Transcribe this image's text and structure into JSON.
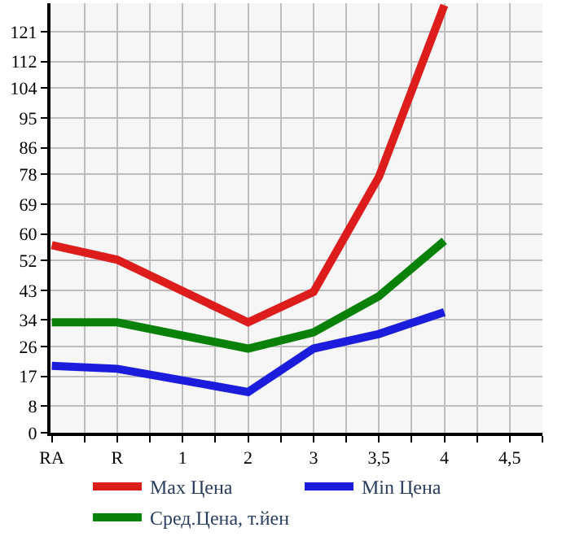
{
  "chart_data": {
    "type": "line",
    "categories": [
      "RA",
      "R",
      "1",
      "2",
      "3",
      "3,5",
      "4",
      "4,5"
    ],
    "series": [
      {
        "name": "Max Цена",
        "color": "#dd1c1c",
        "values": [
          56.6,
          52.2,
          null,
          33.3,
          42.5,
          77.2,
          129,
          null
        ]
      },
      {
        "name": "Min Цена",
        "color": "#1c1cdd",
        "values": [
          20.2,
          19.3,
          null,
          12.3,
          25.4,
          29.8,
          36.4,
          null
        ]
      },
      {
        "name": "Сред.Цена, т.йен",
        "color": "#0a820a",
        "values": [
          33.3,
          33.3,
          null,
          25.4,
          30.3,
          41.2,
          57.9,
          null
        ]
      }
    ],
    "ylim": [
      0,
      129.6
    ],
    "yticks": [
      0,
      8,
      17,
      26,
      34,
      43,
      52,
      60,
      69,
      78,
      86,
      95,
      104,
      112,
      121
    ],
    "grid": true,
    "legend": "bottom",
    "marker": "none",
    "line_style": "solid"
  }
}
